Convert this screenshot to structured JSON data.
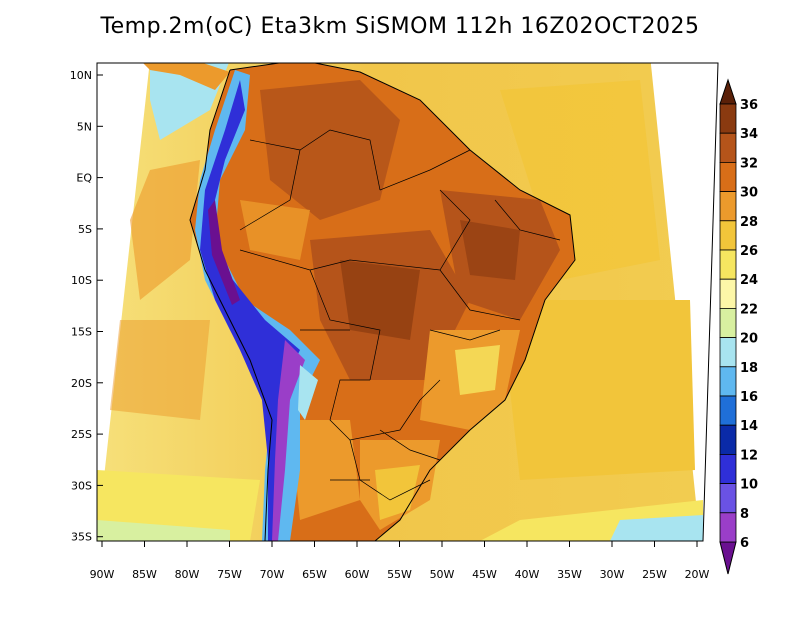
{
  "title": "Temp.2m(oC) Eta3km SiSMOM 112h 16Z02OCT2025",
  "lat_ticks": [
    "10N",
    "5N",
    "EQ",
    "5S",
    "10S",
    "15S",
    "20S",
    "25S",
    "30S",
    "35S"
  ],
  "lon_ticks": [
    "90W",
    "85W",
    "80W",
    "75W",
    "70W",
    "65W",
    "60W",
    "55W",
    "50W",
    "45W",
    "40W",
    "35W",
    "30W",
    "25W",
    "20W"
  ],
  "colorbar": {
    "labels": [
      "36",
      "34",
      "32",
      "30",
      "28",
      "26",
      "24",
      "22",
      "20",
      "18",
      "16",
      "14",
      "12",
      "10",
      "8",
      "6"
    ],
    "colors": [
      "#5a2008",
      "#8a3a10",
      "#b5541a",
      "#d86e18",
      "#ec9a2c",
      "#f2c53a",
      "#f6e660",
      "#fdf7a8",
      "#d8f0a0",
      "#a8e4f0",
      "#5fb8f0",
      "#1f6fd8",
      "#0a2aa8",
      "#2f2fd8",
      "#6a52e4",
      "#9a3ec8",
      "#6a1090"
    ]
  },
  "icons": {
    "colorbar_top": "triangle-up",
    "colorbar_bottom": "triangle-down"
  }
}
